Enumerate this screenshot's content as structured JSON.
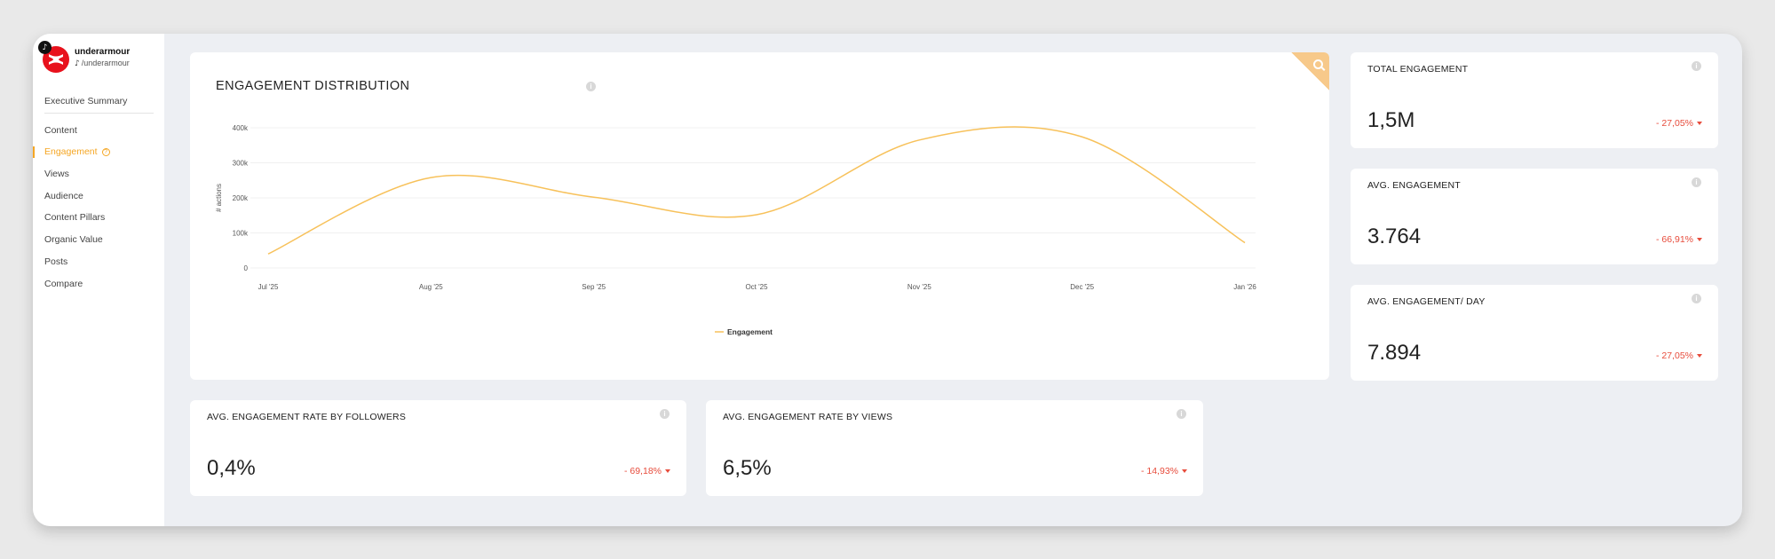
{
  "brand": {
    "name": "underarmour",
    "handle": "/underarmour",
    "platform_icon": "tiktok-icon",
    "accent": "#e8111c"
  },
  "nav": {
    "items": [
      {
        "label": "Executive Summary"
      },
      {
        "label": "Content"
      },
      {
        "label": "Engagement",
        "active": true,
        "help": "?"
      },
      {
        "label": "Views"
      },
      {
        "label": "Audience"
      },
      {
        "label": "Content Pillars"
      },
      {
        "label": "Organic Value"
      },
      {
        "label": "Posts"
      },
      {
        "label": "Compare"
      }
    ],
    "active_color": "#f5a623"
  },
  "chart": {
    "title": "ENGAGEMENT DISTRIBUTION",
    "info": "i",
    "corner_icon": "search-icon"
  },
  "chart_data": {
    "type": "line",
    "x": [
      "Jul '25",
      "Aug '25",
      "Sep '25",
      "Oct '25",
      "Nov '25",
      "Dec '25",
      "Jan '26"
    ],
    "series": [
      {
        "name": "Engagement",
        "color": "#f7c15a",
        "values": [
          40000,
          258000,
          202000,
          152000,
          365000,
          374000,
          72000
        ]
      }
    ],
    "ylabel": "# actions",
    "yticks": [
      "0",
      "100k",
      "200k",
      "300k",
      "400k"
    ],
    "ylim": [
      0,
      400000
    ],
    "grid": true,
    "legend_position": "bottom-center"
  },
  "metrics": {
    "total_engagement": {
      "title": "TOTAL ENGAGEMENT",
      "value": "1,5M",
      "change": "- 27,05%",
      "info": "i"
    },
    "avg_engagement": {
      "title": "AVG. ENGAGEMENT",
      "value": "3.764",
      "change": "- 66,91%",
      "info": "i"
    },
    "avg_engagement_day": {
      "title": "AVG. ENGAGEMENT/ DAY",
      "value": "7.894",
      "change": "- 27,05%",
      "info": "i"
    },
    "rate_followers": {
      "title": "AVG. ENGAGEMENT RATE BY FOLLOWERS",
      "value": "0,4%",
      "change": "- 69,18%",
      "info": "i"
    },
    "rate_views": {
      "title": "AVG. ENGAGEMENT RATE BY VIEWS",
      "value": "6,5%",
      "change": "- 14,93%",
      "info": "i"
    }
  },
  "colors": {
    "negative": "#e74c3c",
    "accent": "#f5a623"
  }
}
